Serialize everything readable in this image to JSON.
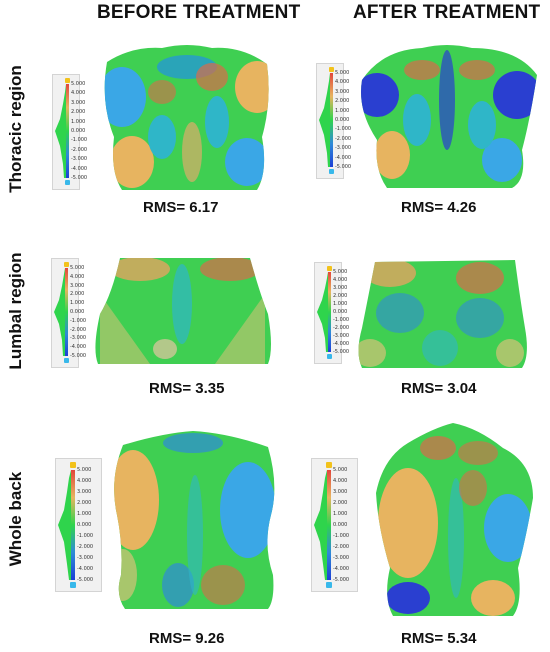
{
  "headers": {
    "before": "BEFORE TREATMENT",
    "after": "AFTER TREATMENT"
  },
  "rows": [
    {
      "label": "Thoracic region",
      "before_rms": "RMS= 6.17",
      "after_rms": "RMS= 4.26"
    },
    {
      "label": "Lumbal region",
      "before_rms": "RMS= 3.35",
      "after_rms": "RMS= 3.04"
    },
    {
      "label": "Whole back",
      "before_rms": "RMS= 9.26",
      "after_rms": "RMS= 5.34"
    }
  ],
  "scale_ticks": [
    "5.000",
    "4.000",
    "3.000",
    "2.000",
    "1.000",
    "0.000",
    "-1.000",
    "-2.000",
    "-3.000",
    "-4.000",
    "-5.000"
  ],
  "colors": {
    "positive": "#e2463a",
    "neutral": "#2fd44c",
    "negative": "#1c3fd6",
    "high_patch": "#e7b460",
    "low_patch": "#3aa7e6"
  }
}
